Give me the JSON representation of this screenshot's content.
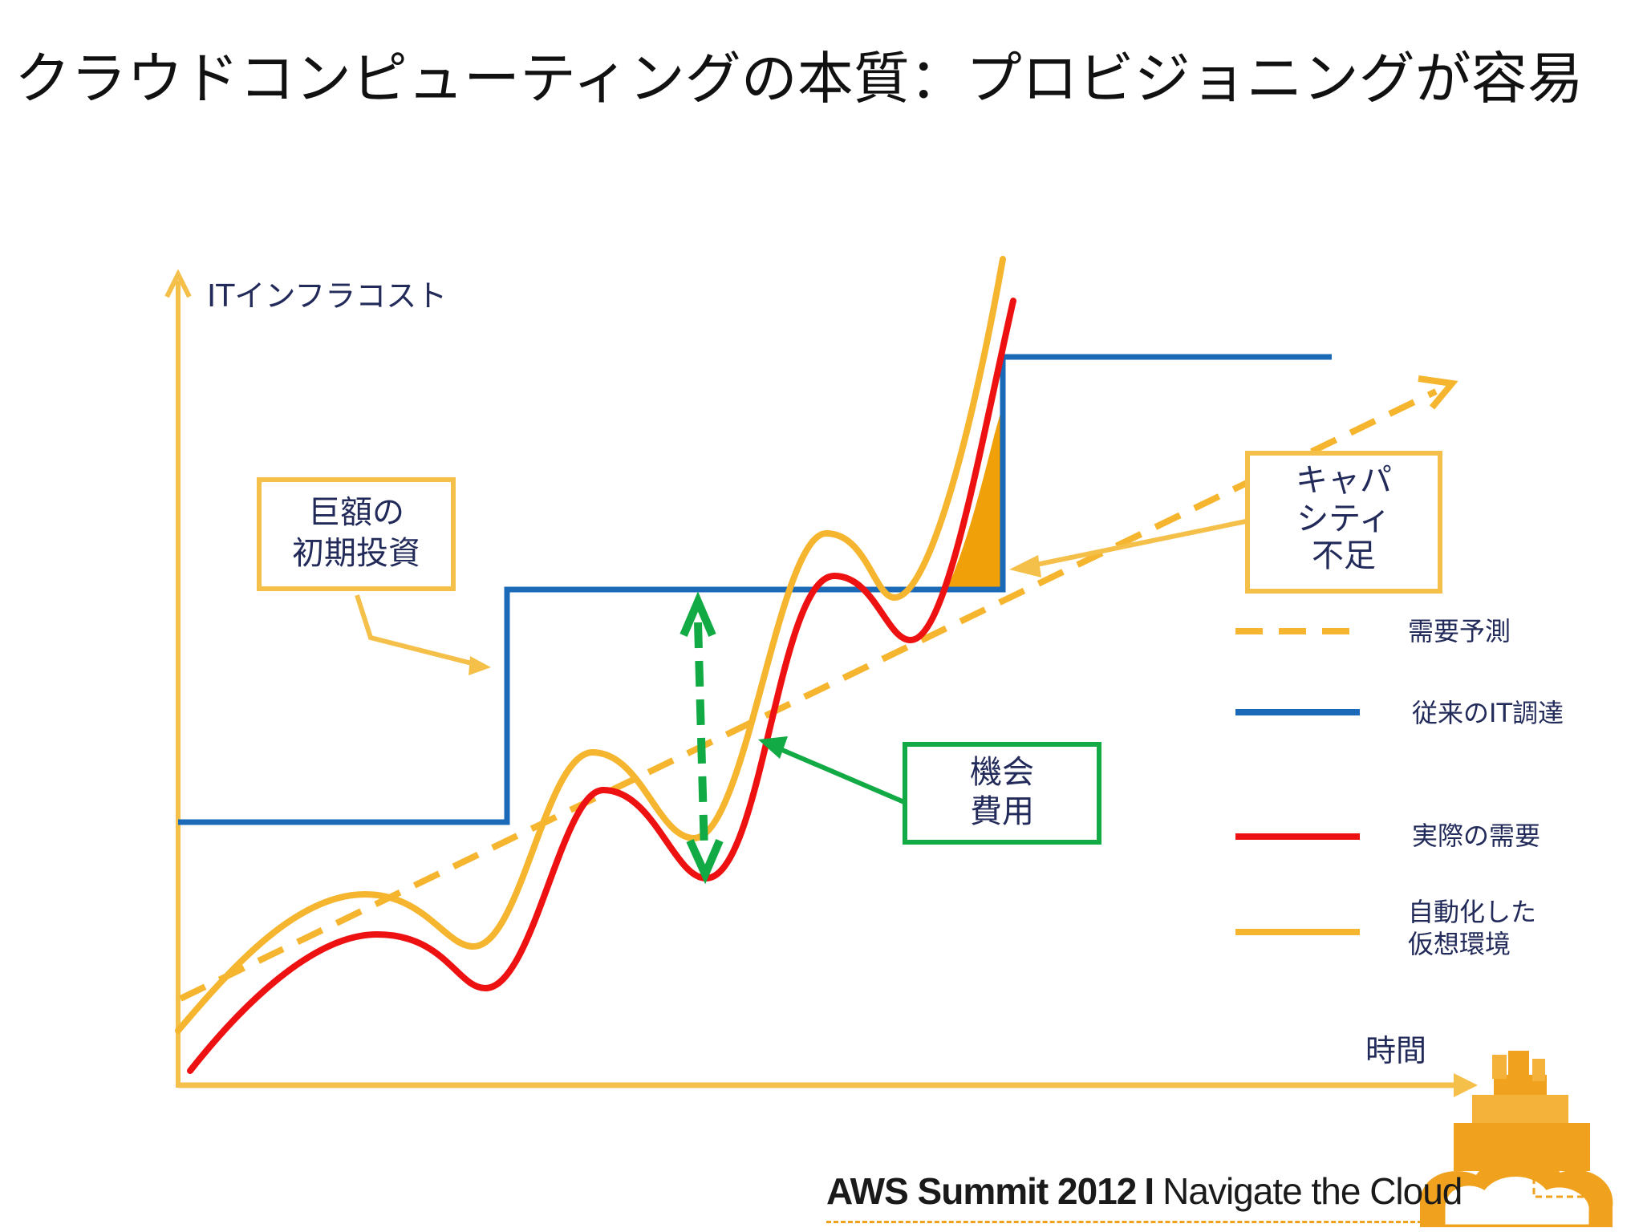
{
  "title": "クラウドコンピューティングの本質：プロビジョニングが容易",
  "axes": {
    "y_label": "ITインフラコスト",
    "x_label": "時間"
  },
  "callouts": {
    "investment": [
      "巨額の",
      "初期投資"
    ],
    "capacity": [
      "キャパ",
      "シティ",
      "不足"
    ],
    "opportunity": [
      "機会",
      "費用"
    ]
  },
  "legend": [
    {
      "label": "需要予測",
      "style": "dashed",
      "color": "#f5b52e"
    },
    {
      "label": "従来のIT調達",
      "style": "solid",
      "color": "#1a6ab8"
    },
    {
      "label": "実際の需要",
      "style": "solid",
      "color": "#ee1111"
    },
    {
      "label": "自動化した\n仮想環境",
      "style": "solid",
      "color": "#f5b52e"
    }
  ],
  "colors": {
    "axis": "#f5c04a",
    "forecast": "#f5b52e",
    "traditional": "#1a6ab8",
    "actual": "#ee1111",
    "virtual": "#f5b52e",
    "opportunity": "#11aa44",
    "shortage_fill": "#f0a10a"
  },
  "footer": {
    "event": "AWS Summit 2012",
    "separator": "I",
    "tagline": "Navigate the Cloud"
  }
}
